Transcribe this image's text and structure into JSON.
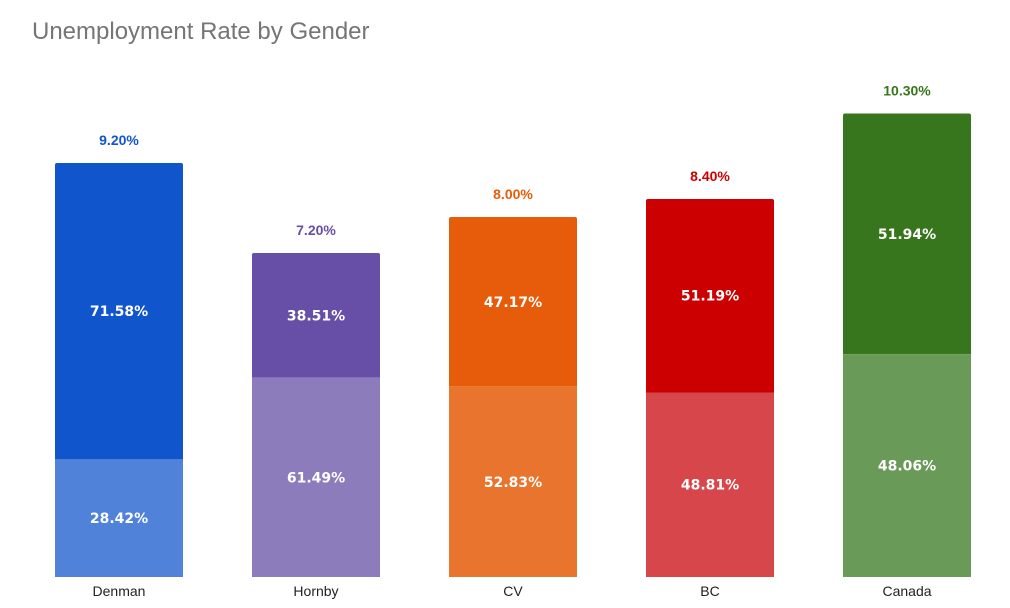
{
  "title": "Unemployment Rate by Gender",
  "chart_data": {
    "type": "bar",
    "stacked": "percent",
    "title": "Unemployment Rate by Gender",
    "categories": [
      "Denman",
      "Hornby",
      "CV",
      "BC",
      "Canada"
    ],
    "totals": [
      9.2,
      7.2,
      8.0,
      8.4,
      10.3
    ],
    "total_labels": [
      "9.20%",
      "7.20%",
      "8.00%",
      "8.40%",
      "10.30%"
    ],
    "series": [
      {
        "values": [
          28.42,
          61.49,
          52.83,
          48.81,
          48.06
        ],
        "labels": [
          "28.42%",
          "61.49%",
          "52.83%",
          "48.81%",
          "48.06%"
        ],
        "position": "bottom"
      },
      {
        "values": [
          71.58,
          38.51,
          47.17,
          51.19,
          51.94
        ],
        "labels": [
          "71.58%",
          "38.51%",
          "47.17%",
          "51.19%",
          "51.94%"
        ],
        "position": "top"
      }
    ],
    "colors": {
      "top": [
        "#1155cc",
        "#674ea7",
        "#e65c0a",
        "#cc0000",
        "#38761d"
      ],
      "bottom": [
        "#5182d9",
        "#8d7cbb",
        "#e8742d",
        "#d6464a",
        "#6a9a58"
      ],
      "total_label": [
        "#1155cc",
        "#674ea7",
        "#e65c0a",
        "#cc0000",
        "#38761d"
      ]
    },
    "xlabel": "",
    "ylabel": "",
    "grid": false,
    "legend": "none"
  }
}
